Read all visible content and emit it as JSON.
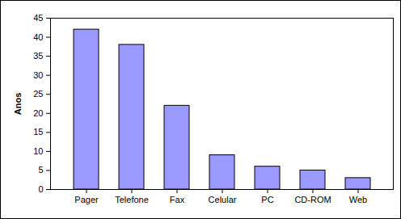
{
  "chart_data": {
    "type": "bar",
    "y_label": "Anos",
    "categories": [
      "Pager",
      "Telefone",
      "Fax",
      "Celular",
      "PC",
      "CD-ROM",
      "Web"
    ],
    "values": [
      42,
      38,
      22,
      9,
      6,
      5,
      3
    ],
    "color": "#9999ff",
    "ylim": [
      0,
      45
    ],
    "yticks": [
      0,
      5,
      10,
      15,
      20,
      25,
      30,
      35,
      40,
      45
    ],
    "grid": false
  }
}
